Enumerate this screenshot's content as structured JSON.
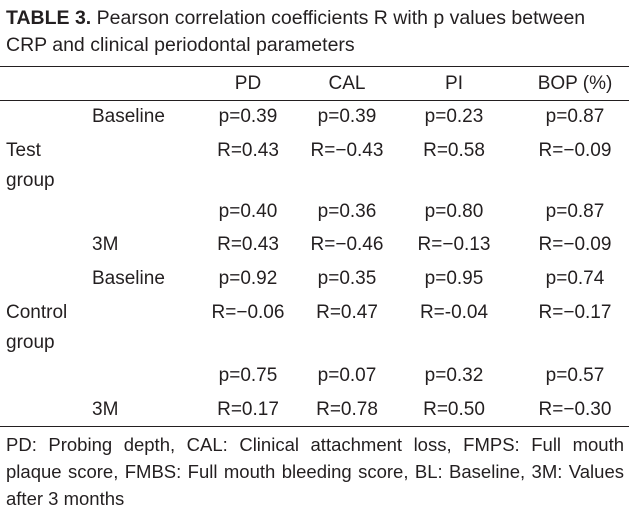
{
  "table": {
    "label": "TABLE 3.",
    "title": " Pearson correlation coefficients R with p values between CRP and clinical periodontal parameters",
    "headers": [
      "PD",
      "CAL",
      "PI",
      "BOP (%)"
    ],
    "groups": [
      {
        "name_line1": "Test",
        "name_line2": "group",
        "baseline_label": "Baseline",
        "baseline_p": [
          "p=0.39",
          "p=0.39",
          "p=0.23",
          "p=0.87"
        ],
        "baseline_r": [
          "R=0.43",
          "R=−0.43",
          "R=0.58",
          "R=−0.09"
        ],
        "month3_label": "3M",
        "month3_p": [
          "p=0.40",
          "p=0.36",
          "p=0.80",
          "p=0.87"
        ],
        "month3_r": [
          "R=0.43",
          "R=−0.46",
          "R=−0.13",
          "R=−0.09"
        ]
      },
      {
        "name_line1": "Control",
        "name_line2": "group",
        "baseline_label": "Baseline",
        "baseline_p": [
          "p=0.92",
          "p=0.35",
          "p=0.95",
          "p=0.74"
        ],
        "baseline_r": [
          "R=−0.06",
          "R=0.47",
          "R=-0.04",
          "R=−0.17"
        ],
        "month3_label": "3M",
        "month3_p": [
          "p=0.75",
          "p=0.07",
          "p=0.32",
          "p=0.57"
        ],
        "month3_r": [
          "R=0.17",
          "R=0.78",
          "R=0.50",
          "R=−0.30"
        ]
      }
    ],
    "footnote": "PD: Probing depth, CAL: Clinical attachment loss, FMPS: Full mouth plaque score, FMBS: Full mouth bleeding score, BL: Baseline, 3M: Values after 3 months"
  }
}
